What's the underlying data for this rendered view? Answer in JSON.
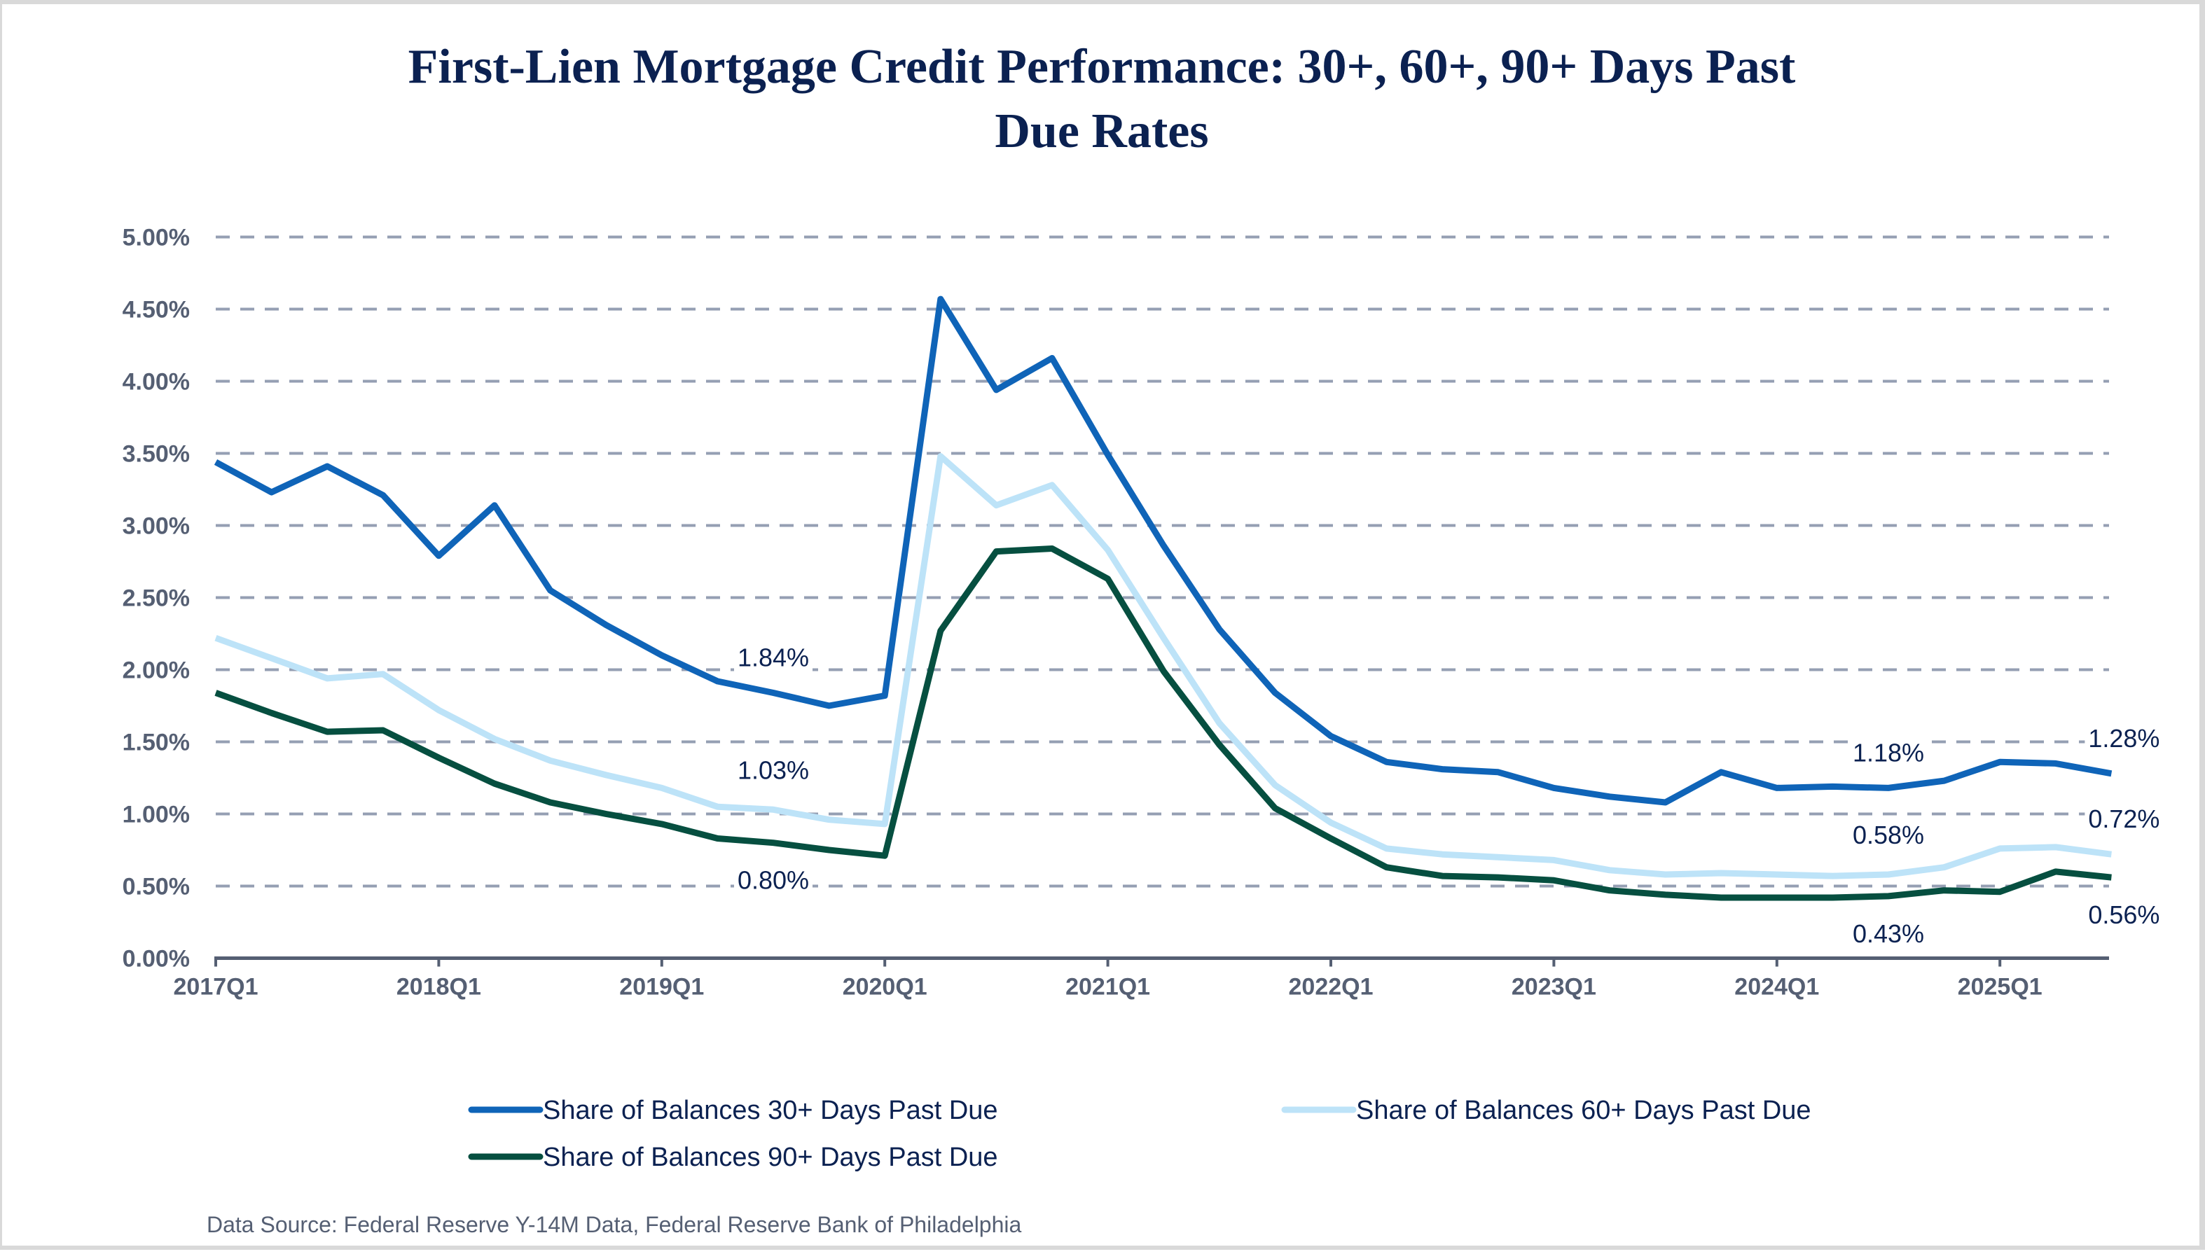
{
  "chart_data": {
    "type": "line",
    "title_lines": [
      "First-Lien Mortgage Credit Performance: 30+, 60+, 90+ Days Past",
      "Due Rates"
    ],
    "title": "First-Lien Mortgage Credit Performance: 30+, 60+, 90+ Days Past Due Rates",
    "xlabel": "",
    "ylabel": "",
    "ylim": [
      0,
      5
    ],
    "y_unit": "%",
    "y_ticks": [
      0,
      0.5,
      1.0,
      1.5,
      2.0,
      2.5,
      3.0,
      3.5,
      4.0,
      4.5,
      5.0
    ],
    "y_tick_labels": [
      "0.00%",
      "0.50%",
      "1.00%",
      "1.50%",
      "2.00%",
      "2.50%",
      "3.00%",
      "3.50%",
      "4.00%",
      "4.50%",
      "5.00%"
    ],
    "grid": true,
    "grid_style": "dashed horizontal",
    "x": [
      "2017Q1",
      "2017Q2",
      "2017Q3",
      "2017Q4",
      "2018Q1",
      "2018Q2",
      "2018Q3",
      "2018Q4",
      "2019Q1",
      "2019Q2",
      "2019Q3",
      "2019Q4",
      "2020Q1",
      "2020Q2",
      "2020Q3",
      "2020Q4",
      "2021Q1",
      "2021Q2",
      "2021Q3",
      "2021Q4",
      "2022Q1",
      "2022Q2",
      "2022Q3",
      "2022Q4",
      "2023Q1",
      "2023Q2",
      "2023Q3",
      "2023Q4",
      "2024Q1",
      "2024Q2",
      "2024Q3",
      "2024Q4",
      "2025Q1",
      "2025Q2",
      "2025Q3"
    ],
    "x_tick_labels": [
      "2017Q1",
      "2018Q1",
      "2019Q1",
      "2020Q1",
      "2021Q1",
      "2022Q1",
      "2023Q1",
      "2024Q1",
      "2025Q1"
    ],
    "series": [
      {
        "name": "Share of Balances 30+ Days Past Due",
        "color": "#0f64b8",
        "values": [
          3.44,
          3.23,
          3.41,
          3.21,
          2.79,
          3.14,
          2.55,
          2.31,
          2.1,
          1.92,
          1.84,
          1.75,
          1.82,
          4.57,
          3.94,
          4.16,
          3.49,
          2.86,
          2.28,
          1.84,
          1.54,
          1.36,
          1.31,
          1.29,
          1.18,
          1.12,
          1.08,
          1.29,
          1.18,
          1.19,
          1.18,
          1.23,
          1.36,
          1.35,
          1.28
        ]
      },
      {
        "name": "Share of Balances 60+ Days Past Due",
        "color": "#bde3f8",
        "values": [
          2.22,
          2.08,
          1.94,
          1.97,
          1.72,
          1.52,
          1.37,
          1.27,
          1.18,
          1.05,
          1.03,
          0.96,
          0.93,
          3.48,
          3.14,
          3.28,
          2.83,
          2.22,
          1.63,
          1.2,
          0.94,
          0.76,
          0.72,
          0.7,
          0.68,
          0.61,
          0.58,
          0.59,
          0.58,
          0.57,
          0.58,
          0.63,
          0.76,
          0.77,
          0.72
        ]
      },
      {
        "name": "Share of Balances 90+ Days Past Due",
        "color": "#064f40",
        "values": [
          1.84,
          1.7,
          1.57,
          1.58,
          1.39,
          1.21,
          1.08,
          1.0,
          0.93,
          0.83,
          0.8,
          0.75,
          0.71,
          2.27,
          2.82,
          2.84,
          2.63,
          1.99,
          1.48,
          1.04,
          0.83,
          0.63,
          0.57,
          0.56,
          0.54,
          0.47,
          0.44,
          0.42,
          0.42,
          0.42,
          0.43,
          0.47,
          0.46,
          0.6,
          0.56
        ]
      }
    ],
    "annotations": [
      {
        "series": 0,
        "x": "2019Q3",
        "text": "1.84%",
        "position": "above"
      },
      {
        "series": 1,
        "x": "2019Q3",
        "text": "1.03%",
        "position": "above"
      },
      {
        "series": 2,
        "x": "2019Q3",
        "text": "0.80%",
        "position": "below"
      },
      {
        "series": 0,
        "x": "2024Q3",
        "text": "1.18%",
        "position": "above"
      },
      {
        "series": 1,
        "x": "2024Q3",
        "text": "0.58%",
        "position": "above"
      },
      {
        "series": 2,
        "x": "2024Q3",
        "text": "0.43%",
        "position": "below"
      },
      {
        "series": 0,
        "x": "2025Q3",
        "text": "1.28%",
        "position": "above"
      },
      {
        "series": 1,
        "x": "2025Q3",
        "text": "0.72%",
        "position": "above"
      },
      {
        "series": 2,
        "x": "2025Q3",
        "text": "0.56%",
        "position": "below"
      }
    ],
    "legend": {
      "placement": "bottom",
      "entries": [
        "Share of Balances 30+ Days Past Due",
        "Share of Balances 60+ Days Past Due",
        "Share of Balances 90+ Days Past Due"
      ]
    },
    "source": "Data Source: Federal Reserve Y-14M Data, Federal Reserve Bank of Philadelphia"
  },
  "colors": {
    "title": "#0b2151",
    "axis_text": "#555f73",
    "gridline": "#959fb3",
    "axis_line": "#555f73",
    "label_text": "#0b2151"
  }
}
